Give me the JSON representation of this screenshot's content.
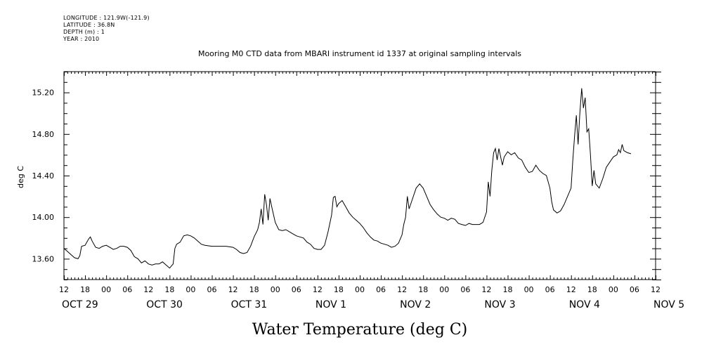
{
  "meta": {
    "longitude": "LONGITUDE : 121.9W(-121.9)",
    "latitude": "LATITUDE : 36.8N",
    "depth": "DEPTH (m) : 1",
    "year": "YEAR : 2010"
  },
  "chart_data": {
    "type": "line",
    "title": "Mooring M0 CTD data from MBARI instrument id 1337 at original sampling intervals",
    "xlabel": "Water Temperature (deg C)",
    "ylabel": "deg C",
    "x_unit": "hours since OCT 29 12:00",
    "xlim": [
      0,
      168
    ],
    "ylim": [
      13.4,
      15.4
    ],
    "y_ticks": [
      "13.60",
      "14.00",
      "14.40",
      "14.80",
      "15.20"
    ],
    "x_hour_ticks": [
      "12",
      "18",
      "00",
      "06",
      "12",
      "18",
      "00",
      "06",
      "12",
      "18",
      "00",
      "06",
      "12",
      "18",
      "00",
      "06",
      "12",
      "18",
      "00",
      "06",
      "12",
      "18",
      "00",
      "06",
      "12",
      "18",
      "00",
      "06",
      "12"
    ],
    "date_labels": [
      {
        "text": "OCT 29",
        "x": 0
      },
      {
        "text": "OCT 30",
        "x": 24
      },
      {
        "text": "OCT 31",
        "x": 48
      },
      {
        "text": "NOV  1",
        "x": 72
      },
      {
        "text": "NOV  2",
        "x": 96
      },
      {
        "text": "NOV  3",
        "x": 120
      },
      {
        "text": "NOV  4",
        "x": 144
      },
      {
        "text": "NOV  5",
        "x": 168
      }
    ],
    "grid": false,
    "series": [
      {
        "points": [
          [
            0,
            13.7
          ],
          [
            1,
            13.67
          ],
          [
            2,
            13.64
          ],
          [
            3,
            13.61
          ],
          [
            4,
            13.6
          ],
          [
            4.5,
            13.63
          ],
          [
            5,
            13.72
          ],
          [
            6,
            13.73
          ],
          [
            7,
            13.79
          ],
          [
            7.5,
            13.81
          ],
          [
            8,
            13.77
          ],
          [
            9,
            13.71
          ],
          [
            10,
            13.7
          ],
          [
            11,
            13.72
          ],
          [
            12,
            13.73
          ],
          [
            13,
            13.71
          ],
          [
            14,
            13.69
          ],
          [
            15,
            13.7
          ],
          [
            16,
            13.72
          ],
          [
            17,
            13.72
          ],
          [
            18,
            13.71
          ],
          [
            19,
            13.68
          ],
          [
            20,
            13.62
          ],
          [
            21,
            13.6
          ],
          [
            22,
            13.56
          ],
          [
            23,
            13.58
          ],
          [
            24,
            13.55
          ],
          [
            25,
            13.54
          ],
          [
            26,
            13.55
          ],
          [
            27,
            13.55
          ],
          [
            28,
            13.57
          ],
          [
            29,
            13.54
          ],
          [
            30,
            13.51
          ],
          [
            31,
            13.55
          ],
          [
            31.5,
            13.7
          ],
          [
            32,
            13.74
          ],
          [
            33,
            13.76
          ],
          [
            34,
            13.82
          ],
          [
            35,
            13.83
          ],
          [
            36,
            13.82
          ],
          [
            37,
            13.8
          ],
          [
            38,
            13.77
          ],
          [
            39,
            13.74
          ],
          [
            40,
            13.73
          ],
          [
            42,
            13.72
          ],
          [
            44,
            13.72
          ],
          [
            46,
            13.72
          ],
          [
            48,
            13.71
          ],
          [
            49,
            13.69
          ],
          [
            50,
            13.66
          ],
          [
            51,
            13.65
          ],
          [
            52,
            13.66
          ],
          [
            53,
            13.72
          ],
          [
            54,
            13.81
          ],
          [
            55,
            13.88
          ],
          [
            55.5,
            13.95
          ],
          [
            56,
            14.08
          ],
          [
            56.5,
            13.93
          ],
          [
            57,
            14.22
          ],
          [
            57.5,
            14.12
          ],
          [
            58,
            13.97
          ],
          [
            58.5,
            14.18
          ],
          [
            59,
            14.1
          ],
          [
            60,
            13.95
          ],
          [
            61,
            13.88
          ],
          [
            62,
            13.87
          ],
          [
            63,
            13.88
          ],
          [
            64,
            13.86
          ],
          [
            65,
            13.84
          ],
          [
            66,
            13.82
          ],
          [
            67,
            13.81
          ],
          [
            68,
            13.8
          ],
          [
            69,
            13.76
          ],
          [
            70,
            13.74
          ],
          [
            71,
            13.7
          ],
          [
            72,
            13.69
          ],
          [
            73,
            13.69
          ],
          [
            74,
            13.73
          ],
          [
            75,
            13.86
          ],
          [
            76,
            14.02
          ],
          [
            76.5,
            14.19
          ],
          [
            77,
            14.2
          ],
          [
            77.5,
            14.1
          ],
          [
            78,
            14.13
          ],
          [
            79,
            14.16
          ],
          [
            80,
            14.1
          ],
          [
            81,
            14.04
          ],
          [
            82,
            14.0
          ],
          [
            83,
            13.97
          ],
          [
            84,
            13.94
          ],
          [
            85,
            13.9
          ],
          [
            86,
            13.85
          ],
          [
            87,
            13.81
          ],
          [
            88,
            13.78
          ],
          [
            89,
            13.77
          ],
          [
            90,
            13.75
          ],
          [
            91,
            13.74
          ],
          [
            92,
            13.73
          ],
          [
            93,
            13.71
          ],
          [
            94,
            13.72
          ],
          [
            95,
            13.75
          ],
          [
            96,
            13.83
          ],
          [
            96.5,
            13.93
          ],
          [
            97,
            14.0
          ],
          [
            97.5,
            14.2
          ],
          [
            98,
            14.08
          ],
          [
            99,
            14.18
          ],
          [
            100,
            14.28
          ],
          [
            101,
            14.32
          ],
          [
            102,
            14.28
          ],
          [
            103,
            14.2
          ],
          [
            104,
            14.12
          ],
          [
            105,
            14.07
          ],
          [
            106,
            14.03
          ],
          [
            107,
            14.0
          ],
          [
            108,
            13.99
          ],
          [
            109,
            13.97
          ],
          [
            110,
            13.99
          ],
          [
            111,
            13.98
          ],
          [
            112,
            13.94
          ],
          [
            113,
            13.93
          ],
          [
            114,
            13.92
          ],
          [
            115,
            13.94
          ],
          [
            116,
            13.93
          ],
          [
            117,
            13.93
          ],
          [
            118,
            13.93
          ],
          [
            119,
            13.95
          ],
          [
            120,
            14.05
          ],
          [
            120.5,
            14.34
          ],
          [
            121,
            14.2
          ],
          [
            121.5,
            14.45
          ],
          [
            122,
            14.62
          ],
          [
            122.5,
            14.66
          ],
          [
            123,
            14.55
          ],
          [
            123.5,
            14.66
          ],
          [
            124,
            14.58
          ],
          [
            124.5,
            14.5
          ],
          [
            125,
            14.58
          ],
          [
            126,
            14.63
          ],
          [
            127,
            14.6
          ],
          [
            128,
            14.62
          ],
          [
            129,
            14.57
          ],
          [
            130,
            14.55
          ],
          [
            131,
            14.48
          ],
          [
            132,
            14.43
          ],
          [
            133,
            14.44
          ],
          [
            134,
            14.5
          ],
          [
            135,
            14.45
          ],
          [
            136,
            14.42
          ],
          [
            137,
            14.4
          ],
          [
            138,
            14.28
          ],
          [
            138.5,
            14.15
          ],
          [
            139,
            14.07
          ],
          [
            140,
            14.04
          ],
          [
            141,
            14.06
          ],
          [
            142,
            14.12
          ],
          [
            143,
            14.2
          ],
          [
            144,
            14.28
          ],
          [
            144.5,
            14.55
          ],
          [
            145,
            14.78
          ],
          [
            145.5,
            14.98
          ],
          [
            146,
            14.7
          ],
          [
            146.5,
            15.0
          ],
          [
            147,
            15.24
          ],
          [
            147.5,
            15.05
          ],
          [
            148,
            15.15
          ],
          [
            148.5,
            14.82
          ],
          [
            149,
            14.85
          ],
          [
            149.5,
            14.6
          ],
          [
            150,
            14.3
          ],
          [
            150.5,
            14.45
          ],
          [
            151,
            14.32
          ],
          [
            152,
            14.28
          ],
          [
            153,
            14.37
          ],
          [
            154,
            14.48
          ],
          [
            155,
            14.53
          ],
          [
            156,
            14.58
          ],
          [
            157,
            14.6
          ],
          [
            157.5,
            14.65
          ],
          [
            158,
            14.62
          ],
          [
            158.5,
            14.7
          ],
          [
            159,
            14.64
          ],
          [
            160,
            14.62
          ],
          [
            161,
            14.61
          ]
        ]
      }
    ]
  }
}
